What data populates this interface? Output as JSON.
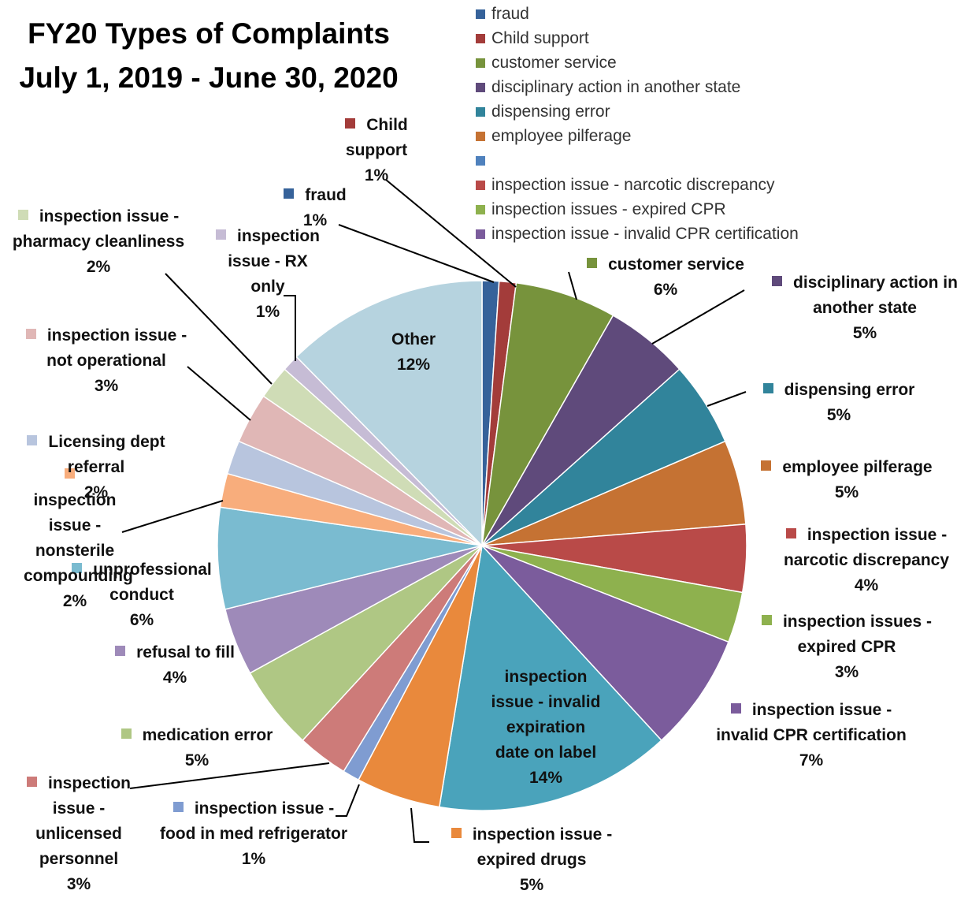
{
  "chart_data": {
    "type": "pie",
    "title": "FY20 Types of Complaints",
    "subtitle": "July 1, 2019 - June 30, 2020",
    "categories": [
      "fraud",
      "Child support",
      "customer service",
      "disciplinary action in another state",
      "dispensing error",
      "employee pilferage",
      "inspection issue - narcotic discrepancy",
      "inspection issues - expired CPR",
      "inspection issue - invalid CPR certification",
      "inspection issue - invalid expiration date on label",
      "inspection issue - expired drugs",
      "inspection issue - food in med refrigerator",
      "inspection issue - unlicensed personnel",
      "medication error",
      "refusal to fill",
      "unprofessional conduct",
      "inspection issue - nonsterile compounding",
      "Licensing dept referral",
      "inspection issue - not operational",
      "inspection issue - pharmacy cleanliness",
      "inspection issue - RX only",
      "Other"
    ],
    "values": [
      1,
      1,
      6,
      5,
      5,
      5,
      4,
      3,
      7,
      14,
      5,
      1,
      3,
      5,
      4,
      6,
      2,
      2,
      3,
      2,
      1,
      12
    ],
    "value_labels": [
      "1%",
      "1%",
      "6%",
      "5%",
      "5%",
      "5%",
      "4%",
      "3%",
      "7%",
      "14%",
      "5%",
      "1%",
      "3%",
      "5%",
      "4%",
      "6%",
      "2%",
      "2%",
      "3%",
      "2%",
      "1%",
      "12%"
    ],
    "colors": [
      "#36629a",
      "#a33c3a",
      "#77933c",
      "#5f4a7b",
      "#31849b",
      "#c57233",
      "#b94a48",
      "#8eb14e",
      "#7b5c9c",
      "#4aa3bb",
      "#e9893c",
      "#7f9cd1",
      "#cd7b79",
      "#afc784",
      "#9e8ab9",
      "#7abbd0",
      "#f8ad7c",
      "#b8c5de",
      "#e0b7b6",
      "#cfdcb6",
      "#c6bcd5",
      "#b6d3df"
    ],
    "legend": true
  }
}
